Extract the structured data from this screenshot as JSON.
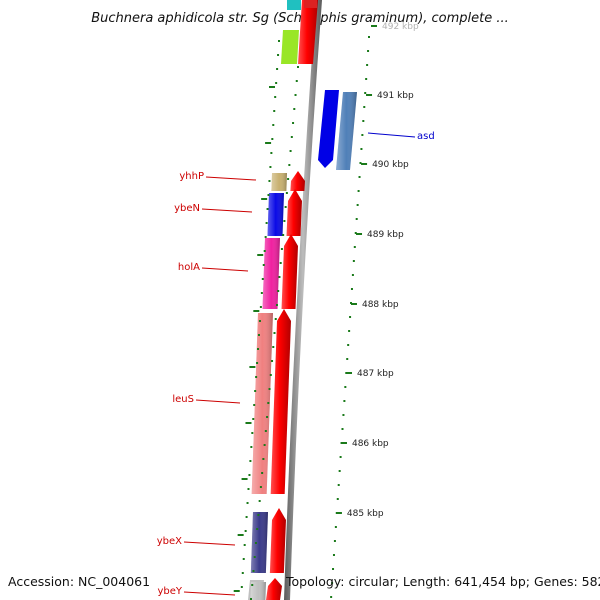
{
  "title": "Buchnera aphidicola str. Sg (Schizaphis graminum), complete ...",
  "footer": {
    "accession": "Accession: NC_004061",
    "summary": "Topology: circular; Length: 641,454 bp; Genes: 582"
  },
  "colors": {
    "left_labels": "#cc0000",
    "right_labels": "#0000cc",
    "tick_marks": "#1a7a1a",
    "backbone": "#888888"
  },
  "ticks": [
    {
      "label": "492 kbp",
      "faded": true
    },
    {
      "label": "491 kbp"
    },
    {
      "label": "490 kbp"
    },
    {
      "label": "489 kbp"
    },
    {
      "label": "488 kbp"
    },
    {
      "label": "487 kbp"
    },
    {
      "label": "486 kbp"
    },
    {
      "label": "485 kbp"
    }
  ],
  "genes_left": [
    {
      "name": "yhhP",
      "color": "#c8b070"
    },
    {
      "name": "ybeN",
      "color": "#0a0ae6"
    },
    {
      "name": "holA",
      "color": "#f020a0"
    },
    {
      "name": "leuS",
      "color": "#f08080"
    },
    {
      "name": "ybeX",
      "color": "#3a3a8a"
    },
    {
      "name": "ybeY",
      "color": "#c0c0c0"
    }
  ],
  "genes_right": [
    {
      "name": "asd",
      "color": "#4f7fb8"
    }
  ]
}
